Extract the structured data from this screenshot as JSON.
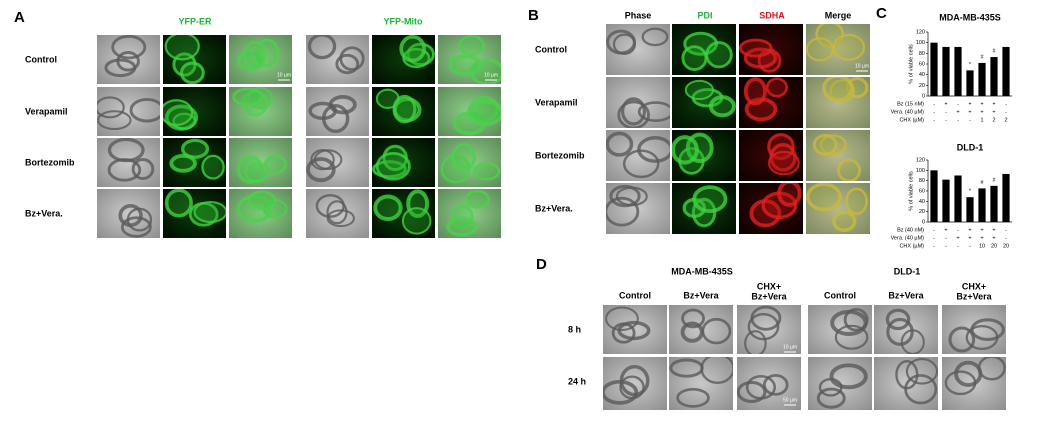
{
  "panel_a": {
    "label": "A",
    "columns": [
      "YFP-ER",
      "YFP-Mito"
    ],
    "rows": [
      "Control",
      "Verapamil",
      "Bortezomib",
      "Bz+Vera."
    ],
    "scale_bar": "10 µm"
  },
  "panel_b": {
    "label": "B",
    "columns": [
      "Phase",
      "PDI",
      "SDHA",
      "Merge"
    ],
    "rows": [
      "Control",
      "Verapamil",
      "Bortezomib",
      "Bz+Vera."
    ],
    "scale_bar": "10 µm"
  },
  "panel_c": {
    "label": "C"
  },
  "chart_data": [
    {
      "type": "bar",
      "title": "MDA-MB-435S",
      "y_label": "% of viable cells",
      "values": [
        100,
        92,
        92,
        48,
        62,
        73,
        92
      ],
      "color": "#000000",
      "ylim": [
        0,
        120
      ],
      "yticks": [
        0,
        20,
        40,
        60,
        80,
        100,
        120
      ],
      "bar_labels": [
        null,
        null,
        null,
        "*",
        "#",
        "#",
        null
      ],
      "conditions": [
        {
          "label": "Bz (15 nM)",
          "values": [
            "-",
            "+",
            "-",
            "+",
            "+",
            "+",
            "-"
          ]
        },
        {
          "label": "Vera. (40 µM)",
          "values": [
            "-",
            "-",
            "+",
            "+",
            "+",
            "+",
            "-"
          ]
        },
        {
          "label": "CHX (µM)",
          "values": [
            "-",
            "-",
            "-",
            "-",
            "1",
            "2",
            "2"
          ]
        }
      ]
    },
    {
      "type": "bar",
      "title": "DLD-1",
      "y_label": "% of viable cells",
      "values": [
        100,
        82,
        90,
        48,
        65,
        70,
        93
      ],
      "color": "#000000",
      "ylim": [
        0,
        120
      ],
      "yticks": [
        0,
        20,
        40,
        60,
        80,
        100,
        120
      ],
      "bar_labels": [
        null,
        null,
        null,
        "*",
        "#",
        "#",
        null
      ],
      "conditions": [
        {
          "label": "Bz (40 nM)",
          "values": [
            "-",
            "+",
            "-",
            "+",
            "+",
            "+",
            "-"
          ]
        },
        {
          "label": "Vera. (40 µM)",
          "values": [
            "-",
            "-",
            "+",
            "+",
            "+",
            "+",
            "-"
          ]
        },
        {
          "label": "CHX (µM)",
          "values": [
            "-",
            "-",
            "-",
            "-",
            "10",
            "20",
            "20"
          ]
        }
      ]
    }
  ],
  "panel_d": {
    "label": "D",
    "groups": [
      "MDA-MB-435S",
      "DLD-1"
    ],
    "columns": [
      "Control",
      "Bz+Vera",
      [
        "CHX+",
        "Bz+Vera"
      ]
    ],
    "rows": [
      "8 h",
      "24 h"
    ],
    "scale_bars": [
      "10 µm",
      "50 µm"
    ]
  }
}
